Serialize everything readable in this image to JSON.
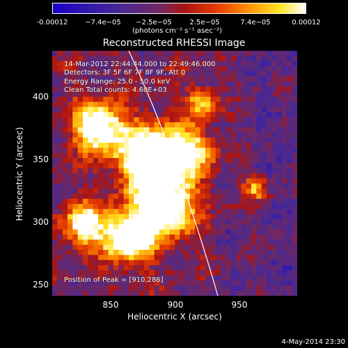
{
  "colorbar": {
    "ticks": [
      "-0.00012",
      "−7.4e−05",
      "−2.5e−05",
      "2.5e−05",
      "7.4e−05",
      "0.00012"
    ],
    "units": "(photons cm⁻² s⁻¹ asec⁻²)"
  },
  "title": "Reconstructed RHESSI Image",
  "info": {
    "time": "14-Mar-2012 22:44:44.000 to 22:49:46.000",
    "detectors": "Detectors: 3F 5F 6F 7F 8F 9F, Att 0",
    "energy": "Energy Range: 25.0 - 50.0 keV",
    "clean": "Clean    Total counts: 4.60E+03",
    "peak": "Position of Peak = [910,286]"
  },
  "axes": {
    "xlabel": "Heliocentric X (arcsec)",
    "ylabel": "Heliocentric Y (arcsec)",
    "xticks": [
      "850",
      "900",
      "950"
    ],
    "yticks": [
      "400",
      "350",
      "300",
      "250"
    ]
  },
  "timestamp": "4-May-2014 23:30",
  "chart_data": {
    "type": "heatmap",
    "title": "Reconstructed RHESSI Image",
    "xlabel": "Heliocentric X (arcsec)",
    "ylabel": "Heliocentric Y (arcsec)",
    "xlim": [
      805,
      995
    ],
    "ylim": [
      245,
      430
    ],
    "colorbar_range": [
      -0.00012,
      0.00012
    ],
    "peak": [
      910,
      286
    ]
  }
}
